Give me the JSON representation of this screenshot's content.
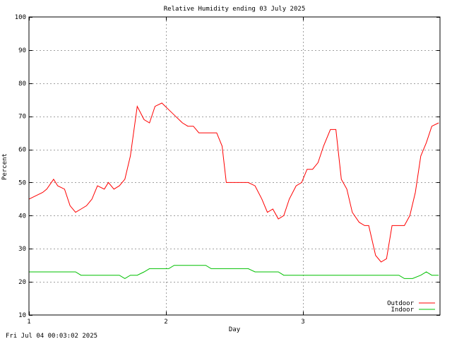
{
  "chart_data": {
    "type": "line",
    "title": "Relative Humidity ending 03 July 2025",
    "xlabel": "Day",
    "ylabel": "Percent",
    "timestamp": "Fri Jul 04 00:03:02 2025",
    "xlim": [
      1,
      3.99
    ],
    "ylim": [
      10,
      100
    ],
    "x_ticks": [
      1,
      2,
      3
    ],
    "x_tick_labels": [
      "1",
      "2",
      "3"
    ],
    "y_ticks": [
      10,
      20,
      30,
      40,
      50,
      60,
      70,
      80,
      90,
      100
    ],
    "y_tick_labels": [
      "10",
      "20",
      "30",
      "40",
      "50",
      "60",
      "70",
      "80",
      "90",
      "100"
    ],
    "grid": true,
    "legend_position": "bottom-right",
    "series": [
      {
        "name": "Outdoor",
        "color": "#ff0000",
        "points": [
          [
            1.0,
            45
          ],
          [
            1.05,
            46
          ],
          [
            1.1,
            47
          ],
          [
            1.13,
            48
          ],
          [
            1.18,
            51
          ],
          [
            1.21,
            49
          ],
          [
            1.26,
            48
          ],
          [
            1.3,
            43
          ],
          [
            1.34,
            41
          ],
          [
            1.38,
            42
          ],
          [
            1.42,
            43
          ],
          [
            1.46,
            45
          ],
          [
            1.5,
            49
          ],
          [
            1.55,
            48
          ],
          [
            1.58,
            50
          ],
          [
            1.62,
            48
          ],
          [
            1.66,
            49
          ],
          [
            1.7,
            51
          ],
          [
            1.74,
            58
          ],
          [
            1.79,
            73
          ],
          [
            1.84,
            69
          ],
          [
            1.88,
            68
          ],
          [
            1.92,
            73
          ],
          [
            1.97,
            74
          ],
          [
            2.02,
            72
          ],
          [
            2.07,
            70
          ],
          [
            2.12,
            68
          ],
          [
            2.16,
            67
          ],
          [
            2.2,
            67
          ],
          [
            2.24,
            65
          ],
          [
            2.29,
            65
          ],
          [
            2.34,
            65
          ],
          [
            2.37,
            65
          ],
          [
            2.41,
            61
          ],
          [
            2.44,
            50
          ],
          [
            2.5,
            50
          ],
          [
            2.55,
            50
          ],
          [
            2.6,
            50
          ],
          [
            2.65,
            49
          ],
          [
            2.7,
            45
          ],
          [
            2.74,
            41
          ],
          [
            2.78,
            42
          ],
          [
            2.82,
            39
          ],
          [
            2.86,
            40
          ],
          [
            2.9,
            45
          ],
          [
            2.95,
            49
          ],
          [
            2.99,
            50
          ],
          [
            3.03,
            54
          ],
          [
            3.07,
            54
          ],
          [
            3.11,
            56
          ],
          [
            3.15,
            61
          ],
          [
            3.2,
            66
          ],
          [
            3.24,
            66
          ],
          [
            3.28,
            51
          ],
          [
            3.32,
            48
          ],
          [
            3.36,
            41
          ],
          [
            3.41,
            38
          ],
          [
            3.45,
            37
          ],
          [
            3.48,
            37
          ],
          [
            3.53,
            28
          ],
          [
            3.57,
            26
          ],
          [
            3.61,
            27
          ],
          [
            3.65,
            37
          ],
          [
            3.69,
            37
          ],
          [
            3.74,
            37
          ],
          [
            3.78,
            40
          ],
          [
            3.82,
            47
          ],
          [
            3.86,
            58
          ],
          [
            3.9,
            62
          ],
          [
            3.94,
            67
          ],
          [
            3.99,
            68
          ]
        ]
      },
      {
        "name": "Indoor",
        "color": "#00c000",
        "points": [
          [
            1.0,
            23
          ],
          [
            1.34,
            23
          ],
          [
            1.38,
            22
          ],
          [
            1.66,
            22
          ],
          [
            1.7,
            21
          ],
          [
            1.74,
            22
          ],
          [
            1.79,
            22
          ],
          [
            1.84,
            23
          ],
          [
            1.88,
            24
          ],
          [
            2.02,
            24
          ],
          [
            2.06,
            25
          ],
          [
            2.29,
            25
          ],
          [
            2.33,
            24
          ],
          [
            2.6,
            24
          ],
          [
            2.65,
            23
          ],
          [
            2.82,
            23
          ],
          [
            2.86,
            22
          ],
          [
            3.7,
            22
          ],
          [
            3.74,
            21
          ],
          [
            3.8,
            21
          ],
          [
            3.86,
            22
          ],
          [
            3.9,
            23
          ],
          [
            3.94,
            22
          ],
          [
            3.99,
            22
          ]
        ]
      }
    ]
  }
}
